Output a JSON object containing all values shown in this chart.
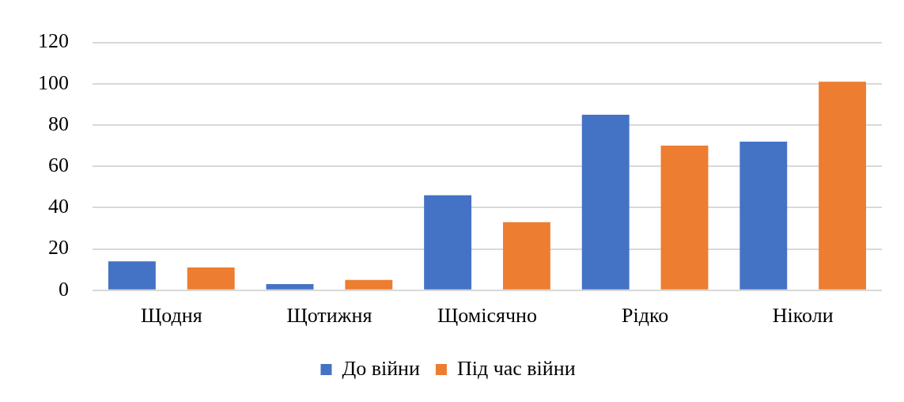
{
  "chart_data": {
    "type": "bar",
    "categories": [
      "Щодня",
      "Щотижня",
      "Щомісячно",
      "Рідко",
      "Ніколи"
    ],
    "series": [
      {
        "name": "До війни",
        "color": "#4472c4",
        "values": [
          14,
          3,
          46,
          85,
          72
        ]
      },
      {
        "name": "Під час війни",
        "color": "#ed7d31",
        "values": [
          11,
          5,
          33,
          70,
          101
        ]
      }
    ],
    "ylim": [
      0,
      120
    ],
    "yticks": [
      0,
      20,
      40,
      60,
      80,
      100,
      120
    ],
    "grid": "y",
    "legend": "bottom"
  }
}
